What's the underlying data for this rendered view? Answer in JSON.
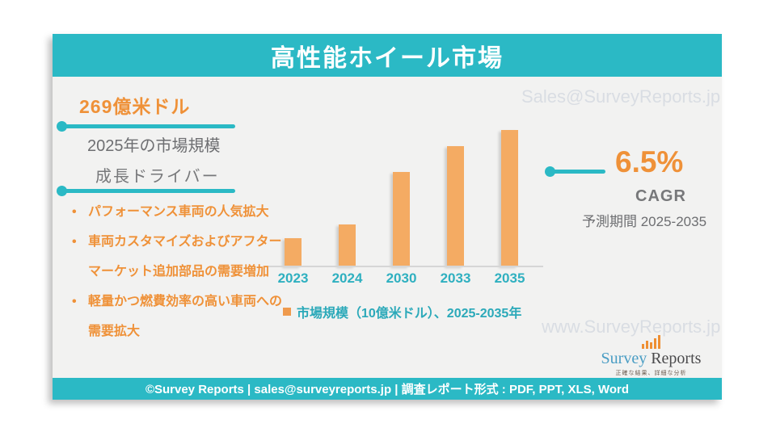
{
  "header": {
    "title": "高性能ホイール市場"
  },
  "left_panel": {
    "stat_value": "269億米ドル",
    "stat_label": "2025年の市場規模",
    "drivers_title": "成長ドライバー",
    "drivers": [
      "パフォーマンス車両の人気拡大",
      "車両カスタマイズおよびアフターマーケット追加部品の需要増加",
      "軽量かつ燃費効率の高い車両への需要拡大"
    ]
  },
  "chart_data": {
    "type": "bar",
    "categories": [
      "2023",
      "2024",
      "2030",
      "2033",
      "2035"
    ],
    "values_percent_of_max": [
      21,
      31,
      69,
      88,
      100
    ],
    "legend": "市場規模（10億米ドル）、2025-2035年",
    "title": "高性能ホイール市場",
    "xlabel": "",
    "ylabel": "",
    "value_axis_labeled": false,
    "grid": false,
    "legend_position": "bottom",
    "bar_color": "#f4ab63"
  },
  "cagr": {
    "value": "6.5%",
    "label": "CAGR",
    "period": "予測期間 2025-2035"
  },
  "watermarks": {
    "top": "Sales@SurveyReports.jp",
    "bottom": "www.SurveyReports.jp"
  },
  "logo": {
    "name_part1": "Survey",
    "name_part2": "Reports",
    "tagline": "正確な結果、詳細な分析"
  },
  "footer": {
    "text": "©Survey Reports | sales@surveyreports.jp |  調査レポート形式 : PDF, PPT, XLS, Word"
  },
  "icons": {
    "bullet": "•"
  },
  "colors": {
    "teal": "#2bb9c5",
    "orange_text": "#ef9138",
    "bar_orange": "#f4ab63",
    "gray_text": "#6e6f72",
    "watermark": "#d9dde3",
    "background": "#f2f2f1"
  }
}
